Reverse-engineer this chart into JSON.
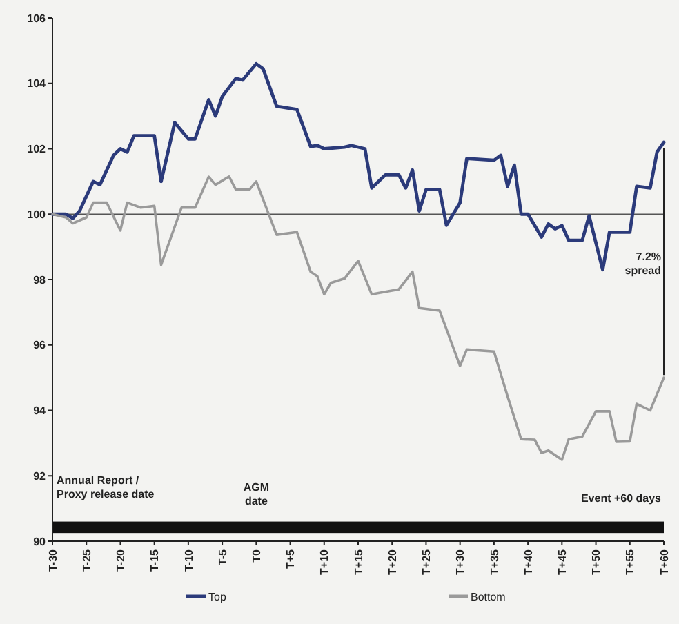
{
  "chart_data": {
    "type": "line",
    "categories": [
      "T-30",
      null,
      null,
      null,
      null,
      "T-25",
      null,
      null,
      null,
      null,
      "T-20",
      null,
      null,
      null,
      null,
      "T-15",
      null,
      null,
      null,
      null,
      "T-10",
      null,
      null,
      null,
      null,
      "T-5",
      null,
      null,
      null,
      null,
      "T0",
      null,
      null,
      null,
      null,
      "T+5",
      null,
      null,
      null,
      null,
      "T+10",
      null,
      null,
      null,
      null,
      "T+15",
      null,
      null,
      null,
      null,
      "T+20",
      null,
      null,
      null,
      null,
      "T+25",
      null,
      null,
      null,
      null,
      "T+30",
      null,
      null,
      null,
      null,
      "T+35",
      null,
      null,
      null,
      null,
      "T+40",
      null,
      null,
      null,
      null,
      "T+45",
      null,
      null,
      null,
      null,
      "T+50",
      null,
      null,
      null,
      null,
      "T+55",
      null,
      null,
      null,
      null,
      "T+60"
    ],
    "ylim": [
      90,
      106
    ],
    "yticks": [
      90,
      92,
      94,
      96,
      98,
      100,
      102,
      104,
      106
    ],
    "grid": false,
    "legend": "bottom",
    "marker": "none",
    "line_style": "solid",
    "series": [
      {
        "name": "Top",
        "color": "#2b3a7a",
        "values": [
          100,
          null,
          100,
          99.87,
          100.1,
          null,
          101,
          100.9,
          null,
          101.8,
          102,
          101.9,
          102.4,
          null,
          null,
          102.4,
          101.0,
          null,
          102.8,
          null,
          102.3,
          102.3,
          null,
          103.5,
          103,
          103.6,
          null,
          104.15,
          104.1,
          null,
          104.6,
          104.45,
          null,
          103.3,
          null,
          null,
          103.2,
          null,
          102.07,
          102.1,
          102.0,
          null,
          null,
          102.05,
          102.1,
          null,
          102.0,
          100.8,
          null,
          101.2,
          null,
          101.2,
          100.8,
          101.35,
          100.1,
          100.75,
          null,
          100.75,
          99.66,
          null,
          100.35,
          101.7,
          null,
          null,
          null,
          101.65,
          101.8,
          100.85,
          101.5,
          100,
          100,
          null,
          99.3,
          99.7,
          99.55,
          99.65,
          99.2,
          null,
          99.2,
          99.95,
          null,
          98.3,
          99.45,
          null,
          null,
          99.45,
          100.85,
          null,
          100.8,
          101.9,
          102.2
        ]
      },
      {
        "name": "Bottom",
        "color": "#9a9a9a",
        "values": [
          100,
          null,
          99.9,
          99.72,
          null,
          99.9,
          100.35,
          null,
          100.35,
          null,
          99.5,
          100.35,
          null,
          100.2,
          null,
          100.25,
          98.45,
          null,
          null,
          100.2,
          null,
          100.2,
          null,
          101.14,
          100.9,
          null,
          101.15,
          100.75,
          null,
          100.75,
          101,
          null,
          null,
          99.37,
          null,
          null,
          99.45,
          null,
          98.24,
          98.1,
          97.55,
          97.9,
          null,
          98.03,
          null,
          98.57,
          null,
          97.55,
          null,
          null,
          null,
          97.7,
          null,
          98.24,
          97.13,
          null,
          null,
          97.05,
          null,
          null,
          95.36,
          95.86,
          null,
          null,
          null,
          95.8,
          null,
          94.43,
          null,
          93.12,
          null,
          93.1,
          92.7,
          92.77,
          null,
          92.49,
          93.12,
          null,
          93.2,
          null,
          93.97,
          null,
          93.97,
          93.04,
          null,
          93.05,
          94.2,
          null,
          94,
          null,
          95
        ]
      }
    ],
    "ref_lines": [
      {
        "axis": "y",
        "value": 100,
        "color": "#555555"
      }
    ],
    "bands": [
      {
        "axis": "y",
        "from": 90.25,
        "to": 90.6,
        "color": "#111111"
      }
    ],
    "annotations": [
      "Annual Report /\nProxy release date",
      "AGM\ndate",
      "Event +60 days",
      "7.2%\nspread"
    ]
  }
}
